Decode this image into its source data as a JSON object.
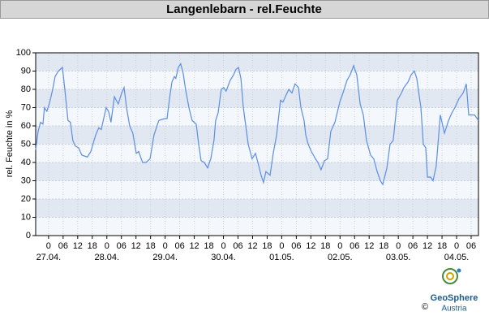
{
  "chart_data": {
    "type": "line",
    "title": "Langenlebarn - rel.Feuchte",
    "ylabel": "rel. Feuchte in %",
    "color": "#5b8ee6",
    "xlim": [
      -5.3,
      177
    ],
    "ylim": [
      0,
      100
    ],
    "yticks": [
      0,
      10,
      20,
      30,
      40,
      50,
      60,
      70,
      80,
      90,
      100
    ],
    "xticks": [
      0,
      {
        "value": 6,
        "label": "06"
      },
      12,
      18,
      {
        "value": 24,
        "label": "0"
      },
      {
        "value": 30,
        "label": "06"
      },
      {
        "value": 36,
        "label": "12"
      },
      {
        "value": 42,
        "label": "18"
      },
      {
        "value": 48,
        "label": "0"
      },
      {
        "value": 54,
        "label": "06"
      },
      {
        "value": 60,
        "label": "12"
      },
      {
        "value": 66,
        "label": "18"
      },
      {
        "value": 72,
        "label": "0"
      },
      {
        "value": 78,
        "label": "06"
      },
      {
        "value": 84,
        "label": "12"
      },
      {
        "value": 90,
        "label": "18"
      },
      {
        "value": 96,
        "label": "0"
      },
      {
        "value": 102,
        "label": "06"
      },
      {
        "value": 108,
        "label": "12"
      },
      {
        "value": 114,
        "label": "18"
      },
      {
        "value": 120,
        "label": "0"
      },
      {
        "value": 126,
        "label": "06"
      },
      {
        "value": 132,
        "label": "12"
      },
      {
        "value": 138,
        "label": "18"
      },
      {
        "value": 144,
        "label": "0"
      },
      {
        "value": 150,
        "label": "06"
      },
      {
        "value": 156,
        "label": "12"
      },
      {
        "value": 162,
        "label": "18"
      },
      {
        "value": 168,
        "label": "0"
      },
      {
        "value": 174,
        "label": "06"
      }
    ],
    "date_ticks": [
      {
        "value": 0,
        "label": "27.04."
      },
      {
        "value": 24,
        "label": "28.04."
      },
      {
        "value": 48,
        "label": "29.04."
      },
      {
        "value": 72,
        "label": "30.04."
      },
      {
        "value": 96,
        "label": "01.05."
      },
      {
        "value": 120,
        "label": "02.05."
      },
      {
        "value": 144,
        "label": "03.05."
      },
      {
        "value": 168,
        "label": "04.05."
      }
    ],
    "grid": true,
    "x": [
      -5.3,
      -4.3,
      -3.3,
      -2.3,
      -1.7,
      -0.7,
      0.3,
      1.7,
      2.7,
      4.0,
      5.7,
      6.7,
      8.0,
      9.0,
      10.0,
      11.0,
      12.4,
      13.7,
      16.0,
      17.4,
      19.4,
      20.7,
      21.7,
      23.7,
      24.7,
      25.7,
      27.1,
      28.7,
      30.1,
      31.1,
      32.1,
      33.4,
      34.7,
      36.1,
      37.1,
      38.7,
      40.1,
      41.8,
      43.4,
      45.4,
      47.8,
      48.8,
      49.8,
      50.8,
      51.8,
      52.4,
      53.4,
      54.4,
      55.4,
      56.4,
      57.8,
      59.1,
      60.8,
      61.8,
      62.8,
      64.1,
      65.5,
      66.8,
      68.1,
      68.8,
      69.8,
      71.1,
      72.1,
      73.1,
      74.8,
      76.2,
      77.2,
      78.2,
      79.2,
      80.2,
      82.2,
      83.8,
      85.2,
      86.2,
      87.5,
      88.5,
      89.5,
      91.2,
      92.5,
      93.9,
      95.5,
      96.5,
      97.5,
      98.9,
      100.2,
      101.5,
      102.9,
      103.9,
      105.2,
      105.9,
      106.9,
      108.2,
      109.9,
      110.9,
      112.2,
      113.6,
      114.9,
      116.2,
      117.9,
      119.9,
      121.2,
      122.9,
      124.2,
      125.6,
      126.9,
      128.3,
      129.6,
      130.9,
      132.6,
      133.9,
      135.3,
      136.6,
      137.6,
      139.3,
      140.6,
      141.9,
      143.6,
      145.3,
      146.3,
      148.0,
      149.3,
      150.6,
      151.6,
      153.3,
      154.3,
      155.3,
      156.0,
      157.3,
      158.3,
      159.6,
      161.3,
      163.0,
      164.7,
      166.0,
      167.3,
      169.0,
      170.7,
      172.0,
      173.0,
      175.4,
      177.0
    ],
    "values": [
      47,
      57,
      62,
      61,
      70,
      68,
      72,
      80,
      87,
      90,
      92,
      80,
      63,
      62,
      52,
      49,
      48,
      44,
      43,
      46,
      55,
      59,
      58,
      70,
      68,
      62,
      76,
      72,
      78,
      81,
      70,
      60,
      56,
      45,
      46,
      40,
      40,
      42,
      55,
      63,
      64,
      64,
      75,
      84,
      87,
      86,
      92,
      94,
      89,
      80,
      70,
      63,
      61,
      50,
      41,
      40,
      37,
      42,
      52,
      63,
      67,
      80,
      81,
      79,
      85,
      88,
      91,
      92,
      86,
      70,
      50,
      42,
      45,
      40,
      33,
      29,
      35,
      33,
      45,
      55,
      74,
      73,
      76,
      80,
      78,
      83,
      81,
      70,
      63,
      55,
      50,
      46,
      42,
      40,
      36,
      41,
      42,
      57,
      62,
      73,
      78,
      85,
      88,
      93,
      88,
      72,
      66,
      52,
      44,
      42,
      35,
      30,
      28,
      37,
      50,
      52,
      74,
      78,
      81,
      84,
      88,
      90,
      86,
      70,
      50,
      48,
      32,
      32,
      30,
      38,
      66,
      56,
      63,
      67,
      70,
      75,
      78,
      83,
      66,
      66,
      63
    ]
  },
  "footer": {
    "copyright": "©",
    "brand": "GeoSphere",
    "sub": "Austria"
  }
}
